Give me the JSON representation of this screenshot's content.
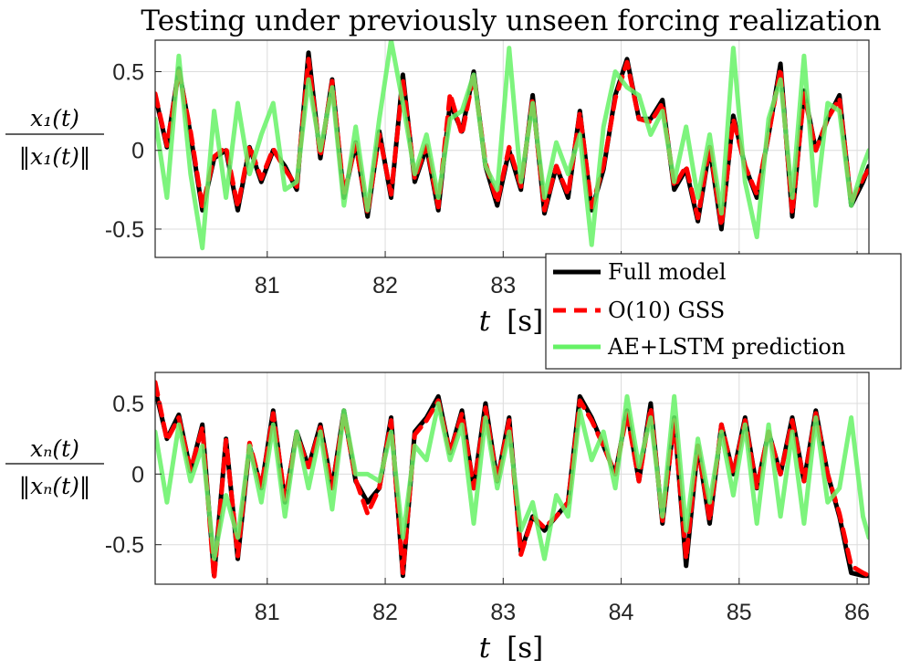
{
  "chart_data": {
    "type": "line",
    "title": "Testing under previously unseen forcing realization",
    "legend": {
      "placement": "center-right",
      "entries": [
        {
          "label": "Full model",
          "color": "#000000",
          "style": "solid"
        },
        {
          "label": "O(10) GSS",
          "color": "#ff0000",
          "style": "dashed"
        },
        {
          "label": "AE+LSTM prediction",
          "color": "#66f266",
          "style": "solid"
        }
      ]
    },
    "panels": [
      {
        "ylabel_num": "x₁(t)",
        "ylabel_den": "‖x₁(t)‖",
        "xlabel_var": "t",
        "xlabel_unit": "[s]",
        "xlim": [
          80.05,
          86.1
        ],
        "ylim": [
          -0.68,
          0.7
        ],
        "yticks": [
          "0.5",
          "0",
          "-0.5"
        ],
        "ytick_values": [
          0.5,
          0,
          -0.5
        ],
        "xticks": [
          "81",
          "82",
          "83"
        ],
        "xtick_values": [
          81,
          82,
          83
        ],
        "grid_xtick_values": [
          81,
          82,
          83,
          84,
          85,
          86
        ],
        "series": [
          {
            "name": "Full model",
            "color": "#000000",
            "x": [
              80.05,
              80.15,
              80.25,
              80.35,
              80.45,
              80.55,
              80.65,
              80.75,
              80.85,
              80.95,
              81.05,
              81.15,
              81.25,
              81.35,
              81.45,
              81.55,
              81.65,
              81.75,
              81.85,
              81.95,
              82.05,
              82.15,
              82.25,
              82.35,
              82.45,
              82.55,
              82.65,
              82.75,
              82.85,
              82.95,
              83.05,
              83.15,
              83.25,
              83.35,
              83.45,
              83.55,
              83.65,
              83.75,
              83.85,
              83.95,
              84.05,
              84.15,
              84.25,
              84.35,
              84.45,
              84.55,
              84.65,
              84.75,
              84.85,
              84.95,
              85.05,
              85.15,
              85.25,
              85.35,
              85.45,
              85.55,
              85.65,
              85.75,
              85.85,
              85.95,
              86.05,
              86.1
            ],
            "y": [
              0.35,
              0.02,
              0.52,
              0.1,
              -0.38,
              -0.05,
              0.0,
              -0.38,
              0.02,
              -0.2,
              0.0,
              -0.1,
              -0.25,
              0.62,
              -0.05,
              0.45,
              -0.3,
              0.05,
              -0.42,
              0.12,
              -0.3,
              0.48,
              -0.2,
              0.02,
              -0.38,
              0.3,
              0.12,
              0.5,
              -0.1,
              -0.35,
              0.0,
              -0.25,
              0.35,
              -0.4,
              -0.1,
              -0.3,
              0.25,
              -0.38,
              -0.12,
              0.35,
              0.58,
              0.2,
              0.2,
              0.32,
              -0.25,
              -0.12,
              -0.45,
              0.02,
              -0.5,
              0.22,
              -0.1,
              -0.3,
              0.1,
              0.55,
              -0.42,
              0.38,
              0.0,
              0.2,
              0.35,
              -0.35,
              -0.2,
              -0.1
            ]
          },
          {
            "name": "O(10) GSS",
            "color": "#ff0000",
            "x": [
              80.05,
              80.15,
              80.25,
              80.35,
              80.45,
              80.55,
              80.65,
              80.75,
              80.85,
              80.95,
              81.05,
              81.15,
              81.25,
              81.35,
              81.45,
              81.55,
              81.65,
              81.75,
              81.85,
              81.95,
              82.05,
              82.15,
              82.25,
              82.35,
              82.45,
              82.55,
              82.65,
              82.75,
              82.85,
              82.95,
              83.05,
              83.15,
              83.25,
              83.35,
              83.45,
              83.55,
              83.65,
              83.75,
              83.85,
              83.95,
              84.05,
              84.15,
              84.25,
              84.35,
              84.45,
              84.55,
              84.65,
              84.75,
              84.85,
              84.95,
              85.05,
              85.15,
              85.25,
              85.35,
              85.45,
              85.55,
              85.65,
              85.75,
              85.85,
              85.95,
              86.05,
              86.1
            ],
            "y": [
              0.36,
              0.03,
              0.5,
              0.12,
              -0.36,
              -0.04,
              0.02,
              -0.36,
              0.03,
              -0.18,
              0.01,
              -0.12,
              -0.23,
              0.58,
              -0.04,
              0.44,
              -0.28,
              0.04,
              -0.4,
              0.1,
              -0.28,
              0.45,
              -0.18,
              0.03,
              -0.36,
              0.36,
              0.1,
              0.48,
              -0.08,
              -0.33,
              0.02,
              -0.23,
              0.33,
              -0.38,
              -0.1,
              -0.28,
              0.24,
              -0.36,
              -0.1,
              0.33,
              0.56,
              0.2,
              0.18,
              0.3,
              -0.23,
              -0.1,
              -0.43,
              0.03,
              -0.48,
              0.2,
              -0.1,
              -0.28,
              0.1,
              0.52,
              -0.4,
              0.36,
              0.0,
              0.2,
              0.33,
              -0.33,
              -0.18,
              -0.12
            ]
          },
          {
            "name": "AE+LSTM prediction",
            "color": "#66f266",
            "x": [
              80.05,
              80.15,
              80.25,
              80.35,
              80.45,
              80.55,
              80.65,
              80.75,
              80.85,
              80.95,
              81.05,
              81.15,
              81.25,
              81.35,
              81.45,
              81.55,
              81.65,
              81.75,
              81.85,
              81.95,
              82.05,
              82.15,
              82.25,
              82.35,
              82.45,
              82.55,
              82.65,
              82.75,
              82.85,
              82.95,
              83.05,
              83.15,
              83.25,
              83.35,
              83.45,
              83.55,
              83.65,
              83.75,
              83.85,
              83.95,
              84.05,
              84.15,
              84.25,
              84.35,
              84.45,
              84.55,
              84.65,
              84.75,
              84.85,
              84.95,
              85.05,
              85.15,
              85.25,
              85.35,
              85.45,
              85.55,
              85.65,
              85.75,
              85.85,
              85.95,
              86.05,
              86.1
            ],
            "y": [
              0.2,
              -0.3,
              0.6,
              -0.15,
              -0.62,
              0.25,
              -0.3,
              0.3,
              -0.15,
              0.1,
              0.3,
              -0.25,
              -0.2,
              0.45,
              0.0,
              0.4,
              -0.35,
              0.15,
              -0.38,
              0.2,
              0.7,
              0.3,
              -0.15,
              0.1,
              -0.3,
              0.2,
              0.25,
              0.48,
              -0.1,
              -0.25,
              0.65,
              -0.2,
              0.3,
              -0.3,
              0.05,
              -0.15,
              0.1,
              -0.6,
              0.15,
              0.5,
              0.4,
              0.35,
              0.1,
              0.25,
              -0.2,
              0.15,
              -0.3,
              0.1,
              -0.4,
              0.65,
              -0.2,
              -0.55,
              0.2,
              0.45,
              -0.3,
              0.6,
              -0.35,
              0.3,
              0.25,
              -0.35,
              -0.1,
              0.0
            ]
          }
        ]
      },
      {
        "ylabel_num": "xₙ(t)",
        "ylabel_den": "‖xₙ(t)‖",
        "xlabel_var": "t",
        "xlabel_unit": "[s]",
        "xlim": [
          80.05,
          86.1
        ],
        "ylim": [
          -0.78,
          0.72
        ],
        "yticks": [
          "0.5",
          "0",
          "-0.5"
        ],
        "ytick_values": [
          0.5,
          0,
          -0.5
        ],
        "xticks": [
          "81",
          "82",
          "83",
          "84",
          "85",
          "86"
        ],
        "xtick_values": [
          81,
          82,
          83,
          84,
          85,
          86
        ],
        "grid_xtick_values": [
          81,
          82,
          83,
          84,
          85,
          86
        ],
        "series": [
          {
            "name": "Full model",
            "color": "#000000",
            "x": [
              80.05,
              80.15,
              80.25,
              80.35,
              80.45,
              80.55,
              80.65,
              80.75,
              80.85,
              80.95,
              81.05,
              81.15,
              81.25,
              81.35,
              81.45,
              81.55,
              81.65,
              81.75,
              81.85,
              81.95,
              82.05,
              82.15,
              82.25,
              82.35,
              82.45,
              82.55,
              82.65,
              82.75,
              82.85,
              82.95,
              83.05,
              83.15,
              83.25,
              83.35,
              83.45,
              83.55,
              83.65,
              83.75,
              83.85,
              83.95,
              84.05,
              84.15,
              84.25,
              84.35,
              84.45,
              84.55,
              84.65,
              84.75,
              84.85,
              84.95,
              85.05,
              85.15,
              85.25,
              85.35,
              85.45,
              85.55,
              85.65,
              85.75,
              85.85,
              85.95,
              86.05,
              86.1
            ],
            "y": [
              0.6,
              0.25,
              0.42,
              0.02,
              0.35,
              -0.72,
              0.25,
              -0.6,
              0.2,
              -0.1,
              0.45,
              -0.2,
              0.3,
              0.05,
              0.35,
              -0.1,
              0.45,
              -0.05,
              -0.2,
              -0.1,
              0.4,
              -0.72,
              0.3,
              0.4,
              0.55,
              0.15,
              0.45,
              -0.1,
              0.5,
              -0.05,
              0.4,
              -0.55,
              -0.3,
              -0.4,
              -0.3,
              -0.2,
              0.55,
              0.4,
              0.2,
              0.0,
              0.45,
              -0.05,
              0.5,
              -0.35,
              0.4,
              -0.65,
              0.2,
              -0.35,
              0.35,
              0.0,
              0.4,
              -0.1,
              0.3,
              0.0,
              0.4,
              -0.05,
              0.45,
              0.0,
              -0.3,
              -0.7,
              -0.72,
              -0.72
            ]
          },
          {
            "name": "O(10) GSS",
            "color": "#ff0000",
            "x": [
              80.05,
              80.15,
              80.25,
              80.35,
              80.45,
              80.55,
              80.65,
              80.75,
              80.85,
              80.95,
              81.05,
              81.15,
              81.25,
              81.35,
              81.45,
              81.55,
              81.65,
              81.75,
              81.85,
              81.95,
              82.05,
              82.15,
              82.25,
              82.35,
              82.45,
              82.55,
              82.65,
              82.75,
              82.85,
              82.95,
              83.05,
              83.15,
              83.25,
              83.35,
              83.45,
              83.55,
              83.65,
              83.75,
              83.85,
              83.95,
              84.05,
              84.15,
              84.25,
              84.35,
              84.45,
              84.55,
              84.65,
              84.75,
              84.85,
              84.95,
              85.05,
              85.15,
              85.25,
              85.35,
              85.45,
              85.55,
              85.65,
              85.75,
              85.85,
              85.95,
              86.05,
              86.1
            ],
            "y": [
              0.65,
              0.24,
              0.4,
              0.03,
              0.33,
              -0.74,
              0.24,
              -0.58,
              0.22,
              -0.1,
              0.43,
              -0.18,
              0.28,
              0.05,
              0.33,
              -0.1,
              0.43,
              -0.04,
              -0.28,
              -0.1,
              0.38,
              -0.7,
              0.28,
              0.38,
              0.52,
              0.15,
              0.43,
              -0.1,
              0.47,
              -0.05,
              0.38,
              -0.57,
              -0.3,
              -0.38,
              -0.3,
              -0.2,
              0.52,
              0.38,
              0.2,
              0.0,
              0.43,
              -0.05,
              0.47,
              -0.33,
              0.38,
              -0.6,
              0.2,
              -0.33,
              0.35,
              0.0,
              0.38,
              -0.1,
              0.3,
              0.0,
              0.38,
              -0.05,
              0.43,
              0.0,
              -0.28,
              -0.65,
              -0.7,
              -0.72
            ]
          },
          {
            "name": "AE+LSTM prediction",
            "color": "#66f266",
            "x": [
              80.05,
              80.15,
              80.25,
              80.35,
              80.45,
              80.55,
              80.65,
              80.75,
              80.85,
              80.95,
              81.05,
              81.15,
              81.25,
              81.35,
              81.45,
              81.55,
              81.65,
              81.75,
              81.85,
              81.95,
              82.05,
              82.15,
              82.25,
              82.35,
              82.45,
              82.55,
              82.65,
              82.75,
              82.85,
              82.95,
              83.05,
              83.15,
              83.25,
              83.35,
              83.45,
              83.55,
              83.65,
              83.75,
              83.85,
              83.95,
              84.05,
              84.15,
              84.25,
              84.35,
              84.45,
              84.55,
              84.65,
              84.75,
              84.85,
              84.95,
              85.05,
              85.15,
              85.25,
              85.35,
              85.45,
              85.55,
              85.65,
              85.75,
              85.85,
              85.95,
              86.05,
              86.1
            ],
            "y": [
              0.3,
              -0.2,
              0.35,
              -0.05,
              0.2,
              -0.6,
              -0.15,
              -0.45,
              0.2,
              -0.2,
              0.35,
              -0.3,
              0.3,
              -0.1,
              0.3,
              -0.25,
              0.45,
              0.0,
              0.0,
              -0.05,
              0.3,
              -0.45,
              0.2,
              0.1,
              0.5,
              0.1,
              0.35,
              -0.35,
              0.4,
              -0.1,
              0.3,
              -0.4,
              -0.2,
              -0.6,
              -0.15,
              -0.3,
              0.45,
              0.1,
              0.3,
              -0.1,
              0.55,
              0.05,
              0.4,
              -0.3,
              0.55,
              -0.4,
              0.25,
              -0.2,
              0.3,
              -0.15,
              0.35,
              -0.35,
              0.35,
              -0.3,
              0.3,
              -0.35,
              0.4,
              -0.2,
              -0.1,
              0.4,
              -0.3,
              -0.45
            ]
          }
        ]
      }
    ]
  }
}
